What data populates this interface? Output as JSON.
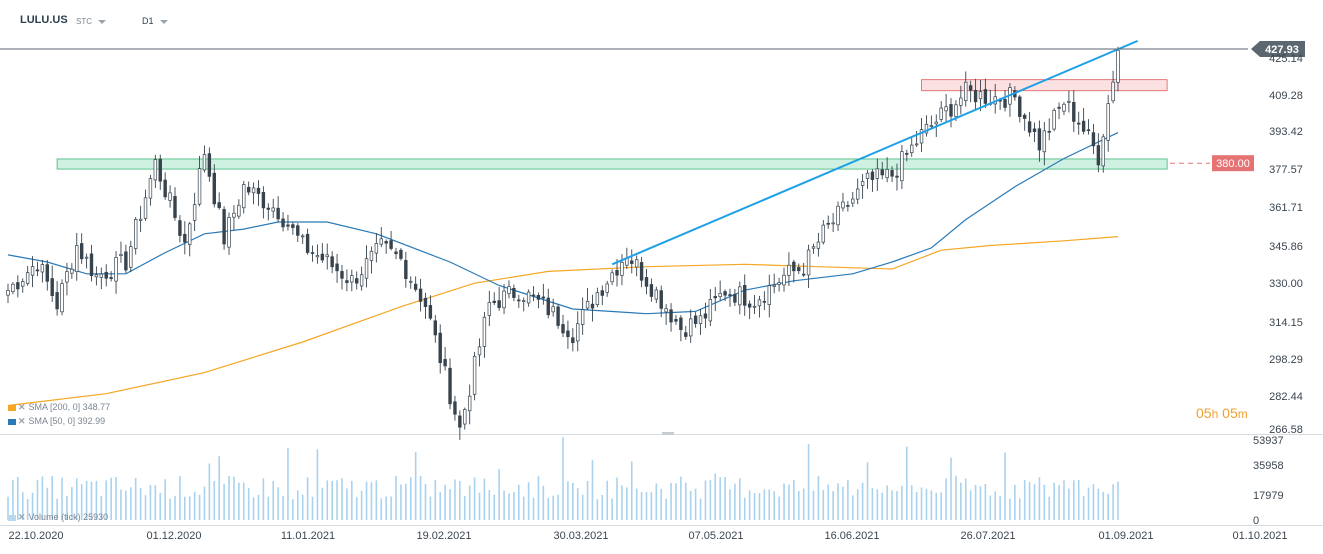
{
  "header": {
    "symbol": "LULU.US",
    "instrument_type": "STC",
    "timeframe": "D1"
  },
  "indicators": [
    {
      "label": "SMA [200, 0]",
      "value": "348.77",
      "color": "#f5a623"
    },
    {
      "label": "SMA [50, 0]",
      "value": "392.99",
      "color": "#2a7ab8"
    }
  ],
  "volume_legend": {
    "label": "Volume (tick)",
    "value": "25930"
  },
  "timer": {
    "hours": "05",
    "h_unit": "h",
    "minutes": "05",
    "m_unit": "m"
  },
  "current_price": {
    "value": 427.93,
    "label": "427.93",
    "color": "#5c6670"
  },
  "level_line": {
    "value": 380.0,
    "label": "380.00",
    "color": "#e57373"
  },
  "chart_data": {
    "type": "candlestick",
    "price_axis": {
      "ticks": [
        "425.14",
        "409.28",
        "393.42",
        "377.57",
        "361.71",
        "345.86",
        "330.00",
        "314.15",
        "298.29",
        "282.44",
        "266.58"
      ],
      "range": [
        266.58,
        428.0
      ]
    },
    "volume_axis": {
      "ticks": [
        "53937",
        "35958",
        "17979",
        "0"
      ],
      "range": [
        0,
        53937
      ]
    },
    "time_axis": {
      "ticks": [
        "22.10.2020",
        "01.12.2020",
        "11.01.2021",
        "19.02.2021",
        "30.03.2021",
        "07.05.2021",
        "16.06.2021",
        "26.07.2021",
        "01.09.2021",
        "01.10.2021"
      ]
    },
    "zones": [
      {
        "type": "support",
        "from_index": 10,
        "to_index": 236,
        "low": 377.5,
        "high": 381.8,
        "color": "#a8e6c8"
      },
      {
        "type": "resistance",
        "from_index": 186,
        "to_index": 236,
        "low": 410.8,
        "high": 415.5,
        "color": "#f8c8c8"
      }
    ],
    "trendline": {
      "from_index": 123,
      "from_value": 337,
      "to_index": 230,
      "to_value": 432,
      "color": "#1ea0e6"
    },
    "series": [
      {
        "name": "SMA [200, 0]",
        "color": "#f5a623",
        "points": [
          [
            0,
            277
          ],
          [
            20,
            282
          ],
          [
            40,
            291
          ],
          [
            60,
            304
          ],
          [
            80,
            319
          ],
          [
            95,
            329
          ],
          [
            110,
            334
          ],
          [
            130,
            336
          ],
          [
            150,
            337
          ],
          [
            165,
            336
          ],
          [
            180,
            335
          ],
          [
            190,
            343
          ],
          [
            200,
            345
          ],
          [
            215,
            347
          ],
          [
            226,
            348.8
          ]
        ]
      },
      {
        "name": "SMA [50, 0]",
        "color": "#2a7ab8",
        "points": [
          [
            0,
            341
          ],
          [
            8,
            338
          ],
          [
            16,
            333
          ],
          [
            24,
            333
          ],
          [
            32,
            342
          ],
          [
            40,
            350
          ],
          [
            48,
            352
          ],
          [
            55,
            355
          ],
          [
            65,
            355
          ],
          [
            75,
            350
          ],
          [
            90,
            338
          ],
          [
            100,
            328
          ],
          [
            115,
            318
          ],
          [
            130,
            316
          ],
          [
            140,
            317
          ],
          [
            150,
            326
          ],
          [
            160,
            330
          ],
          [
            172,
            333
          ],
          [
            180,
            338
          ],
          [
            188,
            344
          ],
          [
            195,
            356
          ],
          [
            205,
            370
          ],
          [
            215,
            382
          ],
          [
            226,
            393
          ]
        ]
      },
      {
        "name": "Price",
        "type": "candle",
        "count": 227,
        "range": [
          266.58,
          428.0
        ],
        "last_close": 427.93,
        "anchors": [
          [
            0,
            326
          ],
          [
            6,
            338
          ],
          [
            10,
            320
          ],
          [
            14,
            345
          ],
          [
            18,
            332
          ],
          [
            24,
            338
          ],
          [
            30,
            380
          ],
          [
            36,
            346
          ],
          [
            40,
            385
          ],
          [
            44,
            348
          ],
          [
            48,
            370
          ],
          [
            55,
            360
          ],
          [
            60,
            345
          ],
          [
            65,
            338
          ],
          [
            70,
            330
          ],
          [
            76,
            344
          ],
          [
            80,
            339
          ],
          [
            85,
            320
          ],
          [
            92,
            267
          ],
          [
            98,
            320
          ],
          [
            104,
            326
          ],
          [
            110,
            318
          ],
          [
            115,
            308
          ],
          [
            120,
            325
          ],
          [
            126,
            342
          ],
          [
            132,
            325
          ],
          [
            137,
            310
          ],
          [
            141,
            313
          ],
          [
            146,
            326
          ],
          [
            152,
            322
          ],
          [
            158,
            332
          ],
          [
            162,
            336
          ],
          [
            166,
            350
          ],
          [
            170,
            360
          ],
          [
            175,
            372
          ],
          [
            180,
            375
          ],
          [
            186,
            392
          ],
          [
            190,
            400
          ],
          [
            195,
            410
          ],
          [
            200,
            408
          ],
          [
            205,
            408
          ],
          [
            210,
            388
          ],
          [
            215,
            406
          ],
          [
            218,
            398
          ],
          [
            222,
            383
          ],
          [
            226,
            427.93
          ]
        ]
      },
      {
        "name": "Volume (tick)",
        "type": "bar",
        "count": 227,
        "range": [
          0,
          53937
        ],
        "last_value": 25930
      }
    ]
  }
}
